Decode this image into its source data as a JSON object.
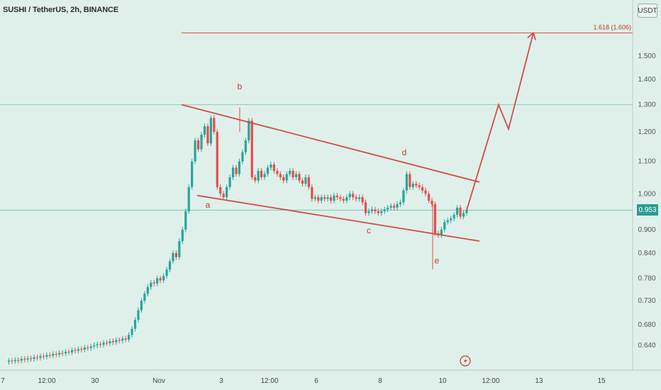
{
  "header": {
    "title": "SUSHI / TetherUS, 2h, BINANCE",
    "unit": "USDT"
  },
  "last_price": "0.953",
  "fib_label": "1.618 (1.606)",
  "chart_data": {
    "type": "candlestick",
    "title": "SUSHI / TetherUS, 2h, BINANCE",
    "scale": "log",
    "ylim": [
      0.605,
      1.74
    ],
    "y_ticks": [
      "1.500",
      "1.400",
      "1.300",
      "1.200",
      "1.100",
      "1.000",
      "0.900",
      "0.840",
      "0.780",
      "0.730",
      "0.680",
      "0.640"
    ],
    "x_ticks": [
      "7",
      "12:00",
      "30",
      "Nov",
      "3",
      "12:00",
      "6",
      "8",
      "10",
      "12:00",
      "13",
      "15"
    ],
    "price_levels": [
      1.606,
      1.3,
      0.953
    ],
    "close_series": [
      0.61,
      0.612,
      0.611,
      0.613,
      0.612,
      0.615,
      0.614,
      0.616,
      0.615,
      0.618,
      0.617,
      0.62,
      0.619,
      0.622,
      0.621,
      0.624,
      0.623,
      0.626,
      0.625,
      0.628,
      0.627,
      0.631,
      0.63,
      0.633,
      0.632,
      0.636,
      0.635,
      0.638,
      0.64,
      0.642,
      0.641,
      0.645,
      0.644,
      0.648,
      0.646,
      0.65,
      0.649,
      0.653,
      0.651,
      0.66,
      0.672,
      0.69,
      0.71,
      0.73,
      0.745,
      0.76,
      0.77,
      0.768,
      0.78,
      0.775,
      0.785,
      0.8,
      0.82,
      0.84,
      0.83,
      0.87,
      0.9,
      0.95,
      1.02,
      1.1,
      1.17,
      1.14,
      1.19,
      1.22,
      1.16,
      1.25,
      1.2,
      1.02,
      1.0,
      0.99,
      1.02,
      1.05,
      1.08,
      1.06,
      1.1,
      1.13,
      1.17,
      1.24,
      1.05,
      1.04,
      1.07,
      1.05,
      1.06,
      1.08,
      1.09,
      1.07,
      1.06,
      1.05,
      1.04,
      1.06,
      1.07,
      1.05,
      1.06,
      1.04,
      1.03,
      1.05,
      1.02,
      0.985,
      0.99,
      0.98,
      0.99,
      0.985,
      0.99,
      0.98,
      0.995,
      0.99,
      0.985,
      0.98,
      0.99,
      1.0,
      0.99,
      0.985,
      0.99,
      0.975,
      0.945,
      0.95,
      0.955,
      0.95,
      0.945,
      0.95,
      0.955,
      0.96,
      0.965,
      0.96,
      0.97,
      0.975,
      1.01,
      1.06,
      1.02,
      1.03,
      1.025,
      1.02,
      1.01,
      1.0,
      0.98,
      0.97,
      0.89,
      0.885,
      0.9,
      0.92,
      0.925,
      0.93,
      0.94,
      0.96,
      0.935,
      0.945,
      0.953
    ],
    "forecast_path": [
      [
        1.0,
        0.953
      ],
      [
        1.5,
        1.3
      ],
      [
        1.6,
        1.21
      ],
      [
        2.0,
        1.606
      ]
    ],
    "triangle_upper": [
      [
        1.3,
        1.035
      ]
    ],
    "triangle_lower": [
      [
        0.995,
        0.87
      ]
    ],
    "wave_labels": [
      {
        "label": "a",
        "value": 0.96
      },
      {
        "label": "b",
        "value": 1.36
      },
      {
        "label": "c",
        "value": 0.89
      },
      {
        "label": "d",
        "value": 1.12
      },
      {
        "label": "e",
        "value": 0.815
      }
    ]
  }
}
